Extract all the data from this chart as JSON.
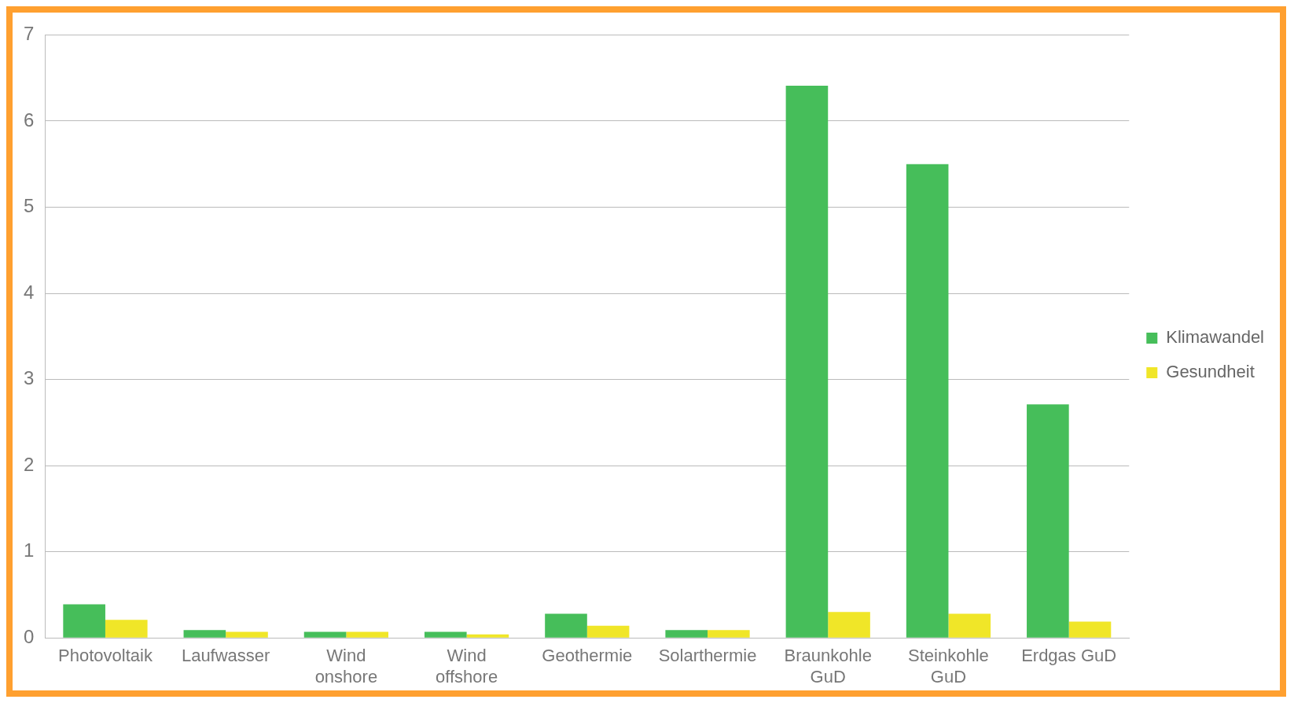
{
  "chart_data": {
    "type": "bar",
    "categories": [
      "Photovoltaik",
      "Laufwasser",
      "Wind onshore",
      "Wind offshore",
      "Geothermie",
      "Solarthermie",
      "Braunkohle GuD",
      "Steinkohle GuD",
      "Erdgas GuD"
    ],
    "series": [
      {
        "name": "Klimawandel",
        "color": "#46be5a",
        "values": [
          0.39,
          0.09,
          0.07,
          0.07,
          0.28,
          0.09,
          6.41,
          5.5,
          2.71
        ]
      },
      {
        "name": "Gesundheit",
        "color": "#f0e628",
        "values": [
          0.21,
          0.07,
          0.07,
          0.04,
          0.14,
          0.09,
          0.3,
          0.28,
          0.19
        ]
      }
    ],
    "ylim": [
      0,
      7
    ],
    "yticks": [
      0,
      1,
      2,
      3,
      4,
      5,
      6,
      7
    ],
    "grid": "y",
    "legend": "right"
  }
}
